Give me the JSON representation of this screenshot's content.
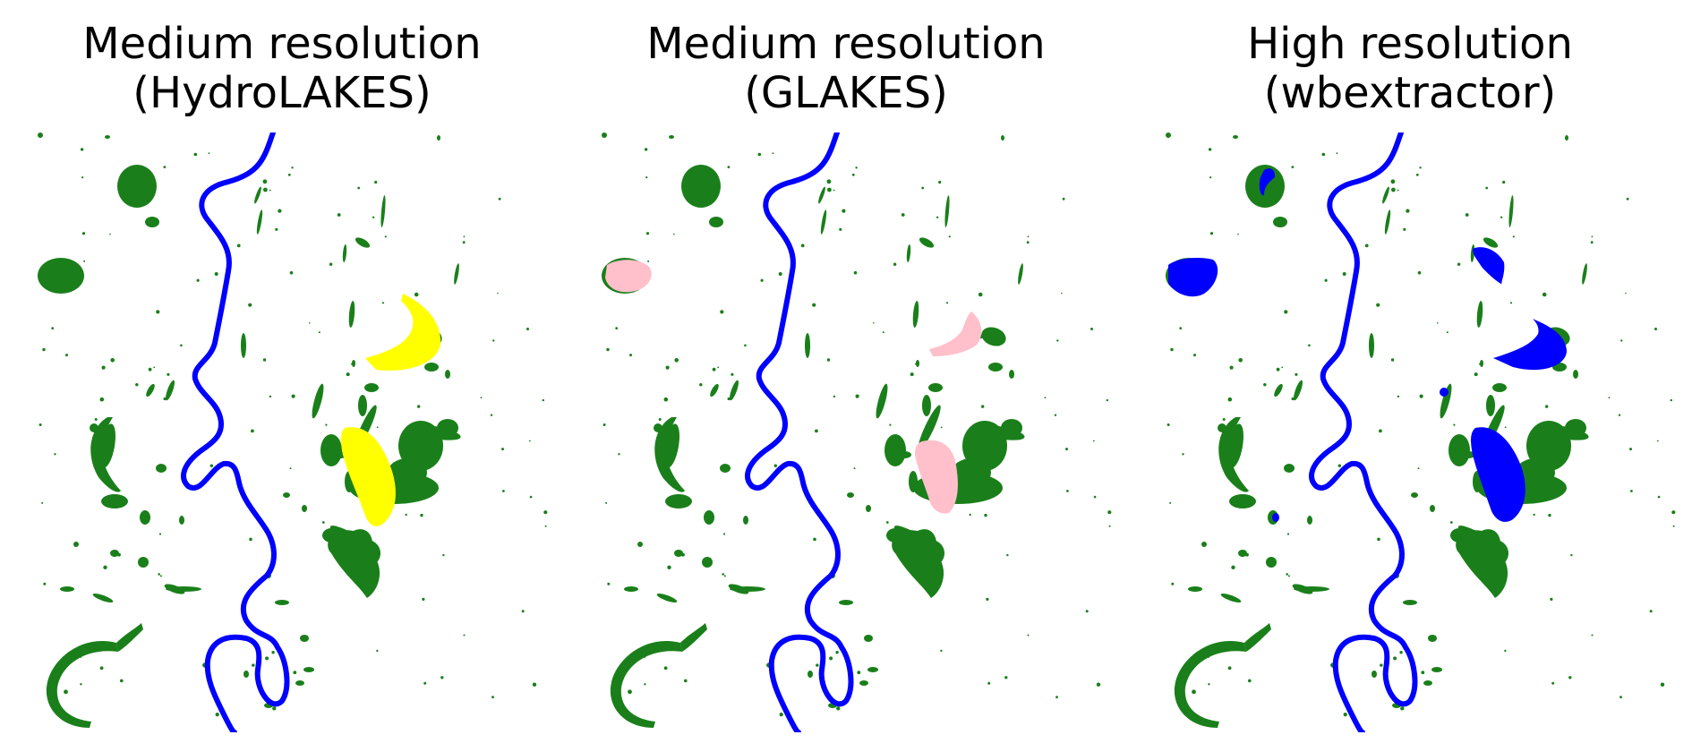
{
  "panels": [
    {
      "title_line1": "Medium resolution",
      "title_line2": "(HydroLAKES)",
      "lake_style": "yellow",
      "lake_color": "#ffff00"
    },
    {
      "title_line1": "Medium resolution",
      "title_line2": "(GLAKES)",
      "lake_style": "pink",
      "lake_color": "#ffc0cb"
    },
    {
      "title_line1": "High resolution",
      "title_line2": "(wbextractor)",
      "lake_style": "blue",
      "lake_color": "#0000ff"
    }
  ],
  "colors": {
    "river": "#0000ff",
    "wetland": "#1a7f1a",
    "background": "#ffffff"
  }
}
